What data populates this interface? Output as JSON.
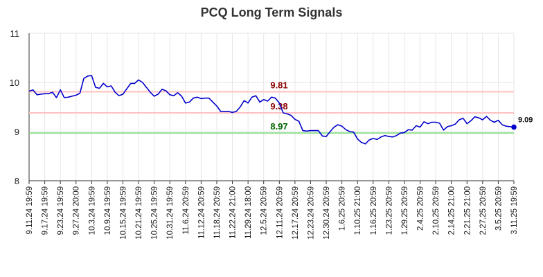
{
  "chart_data": {
    "type": "line",
    "title": "PCQ Long Term Signals",
    "xlabel": "",
    "ylabel": "",
    "ylim": [
      8,
      11
    ],
    "yticks": [
      "8",
      "9",
      "10",
      "11"
    ],
    "grid": true,
    "x_ticks": [
      "9.11.24 19:59",
      "9.17.24 19:59",
      "9.23.24 19:59",
      "9.27.24 20:00",
      "10.3.24 19:59",
      "10.9.24 19:59",
      "10.15.24 19:59",
      "10.21.24 19:59",
      "10.25.24 19:59",
      "10.31.24 19:59",
      "11.6.24 20:59",
      "11.12.24 20:59",
      "11.18.24 20:59",
      "11.22.24 21:00",
      "11.29.24 18:00",
      "12.5.24 20:59",
      "12.11.24 20:59",
      "12.17.24 20:59",
      "12.23.24 20:59",
      "12.30.24 20:59",
      "1.6.25 20:59",
      "1.10.25 21:00",
      "1.16.25 20:59",
      "1.23.25 20:59",
      "1.29.25 20:59",
      "2.4.25 20:59",
      "2.10.25 20:59",
      "2.14.25 21:00",
      "2.21.25 21:00",
      "2.27.25 20:59",
      "3.5.25 20:59",
      "3.11.25 19:59"
    ],
    "series": [
      {
        "color": "#0000cc",
        "values": [
          9.82,
          9.85,
          9.75,
          9.76,
          9.77,
          9.77,
          9.8,
          9.69,
          9.85,
          9.69,
          9.7,
          9.72,
          9.74,
          9.78,
          10.08,
          10.13,
          10.14,
          9.9,
          9.88,
          9.98,
          9.91,
          9.93,
          9.8,
          9.73,
          9.76,
          9.87,
          9.98,
          9.98,
          10.05,
          10.0,
          9.9,
          9.8,
          9.72,
          9.76,
          9.86,
          9.83,
          9.75,
          9.73,
          9.79,
          9.72,
          9.58,
          9.6,
          9.68,
          9.7,
          9.67,
          9.68,
          9.68,
          9.6,
          9.52,
          9.41,
          9.41,
          9.41,
          9.39,
          9.41,
          9.5,
          9.63,
          9.58,
          9.7,
          9.73,
          9.6,
          9.65,
          9.62,
          9.7,
          9.68,
          9.58,
          9.38,
          9.36,
          9.33,
          9.25,
          9.21,
          9.02,
          9.01,
          9.02,
          9.02,
          9.02,
          8.91,
          8.9,
          9.0,
          9.09,
          9.14,
          9.11,
          9.04,
          9.0,
          8.99,
          8.85,
          8.78,
          8.75,
          8.83,
          8.86,
          8.84,
          8.89,
          8.92,
          8.9,
          8.89,
          8.92,
          8.97,
          8.98,
          9.04,
          9.03,
          9.12,
          9.09,
          9.2,
          9.16,
          9.19,
          9.19,
          9.17,
          9.03,
          9.1,
          9.12,
          9.15,
          9.24,
          9.27,
          9.16,
          9.22,
          9.3,
          9.28,
          9.24,
          9.31,
          9.23,
          9.19,
          9.23,
          9.14,
          9.11,
          9.1,
          9.09
        ]
      }
    ],
    "reference_lines": [
      {
        "value": 9.81,
        "label": "9.81",
        "line_color": "#ffc0c0",
        "label_color": "#8b0000"
      },
      {
        "value": 9.38,
        "label": "9.38",
        "line_color": "#ffc0c0",
        "label_color": "#8b0000"
      },
      {
        "value": 8.97,
        "label": "8.97",
        "line_color": "#90e090",
        "label_color": "#006400"
      }
    ],
    "last_value": {
      "value": 9.09,
      "label": "9.09",
      "color": "#0000cc"
    }
  }
}
